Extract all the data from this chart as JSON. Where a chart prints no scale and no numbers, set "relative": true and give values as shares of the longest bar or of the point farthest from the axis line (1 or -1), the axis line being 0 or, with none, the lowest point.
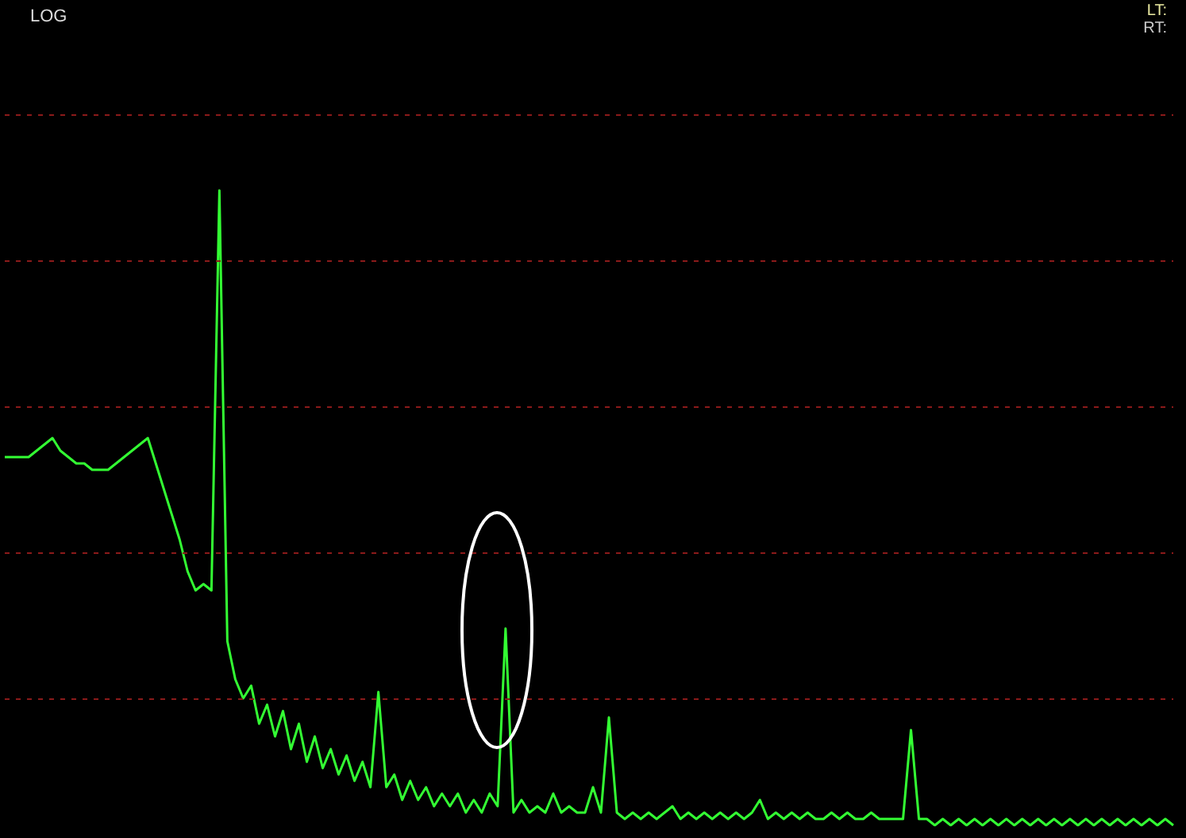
{
  "chart_data": {
    "type": "line",
    "title": "LOG",
    "annotations": [
      "LT:",
      "RT:"
    ],
    "relative": true,
    "color": "#33ff33",
    "ref_lines": [
      {
        "axis": "y",
        "value": 0.2,
        "color": "#8b1a1a",
        "line_style": "dashed"
      },
      {
        "axis": "y",
        "value": 0.43,
        "color": "#8b1a1a",
        "line_style": "dashed"
      },
      {
        "axis": "y",
        "value": 0.66,
        "color": "#8b1a1a",
        "line_style": "dashed"
      },
      {
        "axis": "y",
        "value": 0.89,
        "color": "#8b1a1a",
        "line_style": "dashed"
      },
      {
        "axis": "y",
        "value": 1.12,
        "color": "#8b1a1a",
        "line_style": "dashed"
      }
    ],
    "categories": [
      null,
      null,
      null,
      null,
      null,
      null,
      null,
      null,
      null,
      null,
      null,
      null,
      null,
      null,
      null,
      null,
      null,
      null,
      null,
      null,
      null,
      null,
      null,
      null,
      null,
      null,
      null,
      null,
      null,
      null,
      null,
      null,
      null,
      null,
      null,
      null,
      null,
      null,
      null,
      null,
      null,
      null,
      null,
      null,
      null,
      null,
      null,
      null,
      null,
      null,
      null,
      null,
      null,
      null,
      null,
      null,
      null,
      null,
      null,
      null,
      null,
      null,
      null,
      null,
      null,
      null,
      null,
      null,
      null,
      null,
      null,
      null,
      null,
      null,
      null,
      null,
      null,
      null,
      null,
      null,
      null,
      null,
      null,
      null,
      null,
      null,
      null,
      null,
      null,
      null,
      null,
      null,
      null,
      null,
      null,
      null,
      null,
      null,
      null,
      null,
      null,
      null,
      null,
      null,
      null,
      null,
      null,
      null,
      null,
      null,
      null,
      null,
      null,
      null,
      null,
      null,
      null,
      null,
      null,
      null,
      null,
      null,
      null,
      null,
      null,
      null,
      null,
      null,
      null,
      null,
      null,
      null,
      null,
      null,
      null,
      null,
      null,
      null,
      null,
      null,
      null,
      null,
      null,
      null,
      null,
      null,
      null,
      null
    ],
    "values": [
      0.58,
      0.58,
      0.58,
      0.58,
      0.59,
      0.6,
      0.61,
      0.59,
      0.58,
      0.57,
      0.57,
      0.56,
      0.56,
      0.56,
      0.57,
      0.58,
      0.59,
      0.6,
      0.61,
      0.57,
      0.53,
      0.49,
      0.45,
      0.4,
      0.37,
      0.38,
      0.37,
      1,
      0.29,
      0.23,
      0.2,
      0.22,
      0.16,
      0.19,
      0.14,
      0.18,
      0.12,
      0.16,
      0.1,
      0.14,
      0.09,
      0.12,
      0.08,
      0.11,
      0.07,
      0.1,
      0.06,
      0.21,
      0.06,
      0.08,
      0.04,
      0.07,
      0.04,
      0.06,
      0.03,
      0.05,
      0.03,
      0.05,
      0.02,
      0.04,
      0.02,
      0.05,
      0.03,
      0.31,
      0.02,
      0.04,
      0.02,
      0.03,
      0.02,
      0.05,
      0.02,
      0.03,
      0.02,
      0.02,
      0.06,
      0.02,
      0.17,
      0.02,
      0.01,
      0.02,
      0.01,
      0.02,
      0.01,
      0.02,
      0.03,
      0.01,
      0.02,
      0.01,
      0.02,
      0.01,
      0.02,
      0.01,
      0.02,
      0.01,
      0.02,
      0.04,
      0.01,
      0.02,
      0.01,
      0.02,
      0.01,
      0.02,
      0.01,
      0.01,
      0.02,
      0.01,
      0.02,
      0.01,
      0.01,
      0.02,
      0.01,
      0.01,
      0.01,
      0.01,
      0.15,
      0.01,
      0.01,
      0.0,
      0.01,
      0.0,
      0.01,
      0.0,
      0.01,
      0.0,
      0.01,
      0.0,
      0.01,
      0.0,
      0.01,
      0.0,
      0.01,
      0.0,
      0.01,
      0.0,
      0.01,
      0.0,
      0.01,
      0.0,
      0.01,
      0.0,
      0.01,
      0.0,
      0.01,
      0.0,
      0.01,
      0.0,
      0.01,
      0.0
    ]
  }
}
